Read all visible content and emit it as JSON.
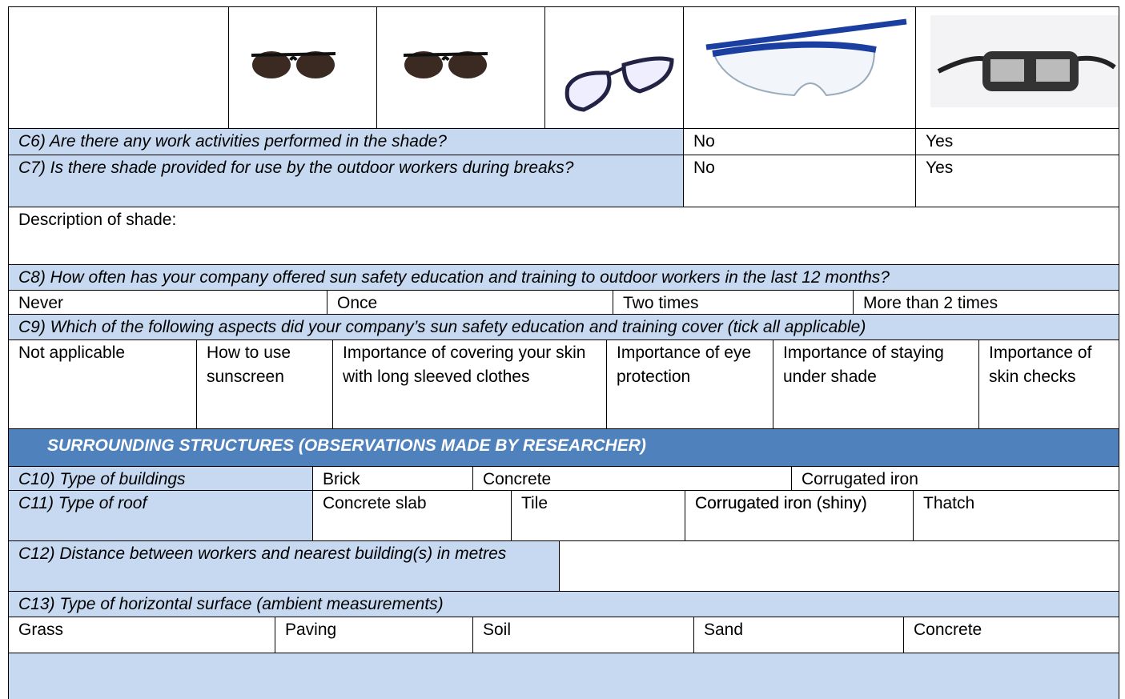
{
  "c6": {
    "question": "C6) Are there any work activities performed in the shade?",
    "options": [
      "No",
      "Yes"
    ]
  },
  "c7": {
    "question": "C7) Is there shade provided for use by the outdoor workers during breaks?",
    "options": [
      "No",
      "Yes"
    ]
  },
  "shade_description": {
    "label": "Description of shade:"
  },
  "c8": {
    "question": "C8) How often has your company offered sun safety education and training to outdoor workers in the last 12 months?",
    "options": [
      "Never",
      "Once",
      "Two times",
      "More than 2 times"
    ]
  },
  "c9": {
    "question": "C9) Which of the following aspects did your company’s sun safety education and training cover (tick all applicable)",
    "options": [
      "Not applicable",
      "How to use sunscreen",
      "Importance of covering your skin with long sleeved clothes",
      "Importance of eye protection",
      "Importance of staying under shade",
      "Importance of skin checks"
    ]
  },
  "section": {
    "title": "SURROUNDING STRUCTURES (OBSERVATIONS MADE BY RESEARCHER)"
  },
  "c10": {
    "question": "C10) Type of buildings",
    "options": [
      "Brick",
      "Concrete",
      "Corrugated iron"
    ]
  },
  "c11": {
    "question": "C11) Type of roof",
    "options": [
      "Concrete slab",
      "Tile",
      "Corrugated iron (shiny)",
      "Thatch"
    ]
  },
  "c12": {
    "question": "C12) Distance between workers and nearest building(s) in metres"
  },
  "c13": {
    "question": "C13) Type of horizontal surface (ambient measurements)",
    "options": [
      "Grass",
      "Paving",
      "Soil",
      "Sand",
      "Concrete"
    ]
  }
}
